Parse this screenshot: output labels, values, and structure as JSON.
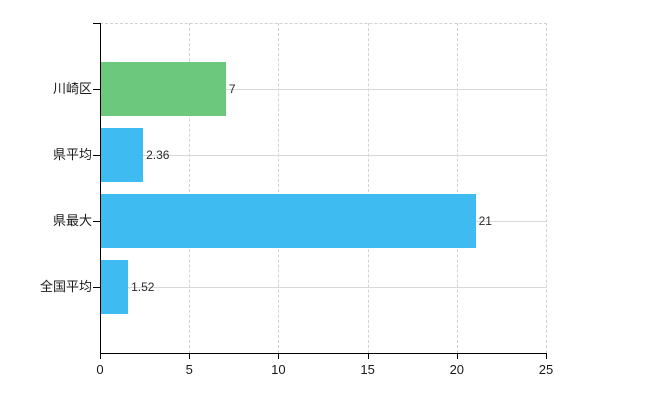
{
  "chart_data": {
    "type": "bar",
    "orientation": "horizontal",
    "title": "",
    "xlabel": "",
    "ylabel": "",
    "categories": [
      "川崎区",
      "県平均",
      "県最大",
      "全国平均"
    ],
    "values": [
      7,
      2.36,
      21,
      1.52
    ],
    "value_labels": [
      "7",
      "2.36",
      "21",
      "1.52"
    ],
    "bar_colors": [
      "#6bc87d",
      "#3ebcf2",
      "#3ebcf2",
      "#3ebcf2"
    ],
    "xlim": [
      0,
      25
    ],
    "x_ticks": [
      0,
      5,
      10,
      15,
      20,
      25
    ],
    "x_tick_labels": [
      "0",
      "5",
      "10",
      "15",
      "20",
      "25"
    ],
    "grid": true,
    "legend": false
  },
  "colors": {
    "green_bar": "#6bc87d",
    "blue_bar": "#3ebcf2",
    "gridline": "#d2d2d2",
    "axis": "#000000",
    "text": "#1a1a1a",
    "background": "#ffffff"
  }
}
